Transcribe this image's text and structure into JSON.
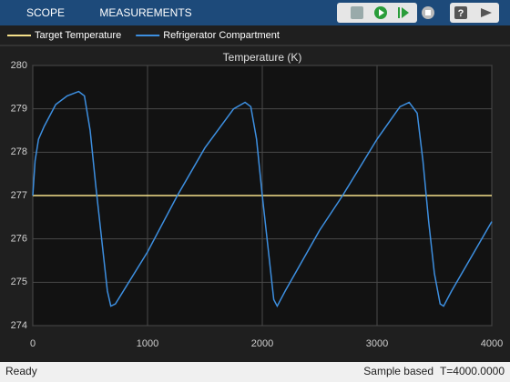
{
  "toolbar": {
    "tabs": [
      "SCOPE",
      "MEASUREMENTS"
    ]
  },
  "chart_data": {
    "type": "line",
    "title": "Temperature (K)",
    "series": [
      {
        "name": "Target Temperature",
        "color": "#f5e08a",
        "x": [
          0,
          4000
        ],
        "values": [
          277,
          277
        ]
      },
      {
        "name": "Refrigerator Compartment",
        "color": "#3d8fe0",
        "x": [
          0,
          20,
          50,
          100,
          200,
          300,
          400,
          450,
          500,
          550,
          600,
          650,
          680,
          720,
          1000,
          1260,
          1500,
          1750,
          1850,
          1900,
          1950,
          2000,
          2050,
          2100,
          2130,
          2200,
          2500,
          2700,
          3000,
          3200,
          3280,
          3350,
          3400,
          3450,
          3500,
          3550,
          3580,
          3650,
          4000
        ],
        "values": [
          277,
          277.8,
          278.3,
          278.6,
          279.1,
          279.3,
          279.4,
          279.3,
          278.5,
          277.2,
          276,
          274.8,
          274.45,
          274.5,
          275.7,
          277,
          278.1,
          279,
          279.15,
          279.05,
          278.3,
          277,
          275.8,
          274.6,
          274.45,
          274.8,
          276.2,
          277,
          278.3,
          279.05,
          279.15,
          278.9,
          277.8,
          276.4,
          275.2,
          274.5,
          274.45,
          274.8,
          276.4
        ]
      }
    ],
    "xlim": [
      0,
      4000
    ],
    "xticks": [
      0,
      1000,
      2000,
      3000,
      4000
    ],
    "ylim": [
      274,
      280
    ],
    "yticks": [
      274,
      275,
      276,
      277,
      278,
      279,
      280
    ],
    "grid": true
  },
  "status": {
    "state": "Ready",
    "mode": "Sample based",
    "time": "T=4000.0000"
  }
}
